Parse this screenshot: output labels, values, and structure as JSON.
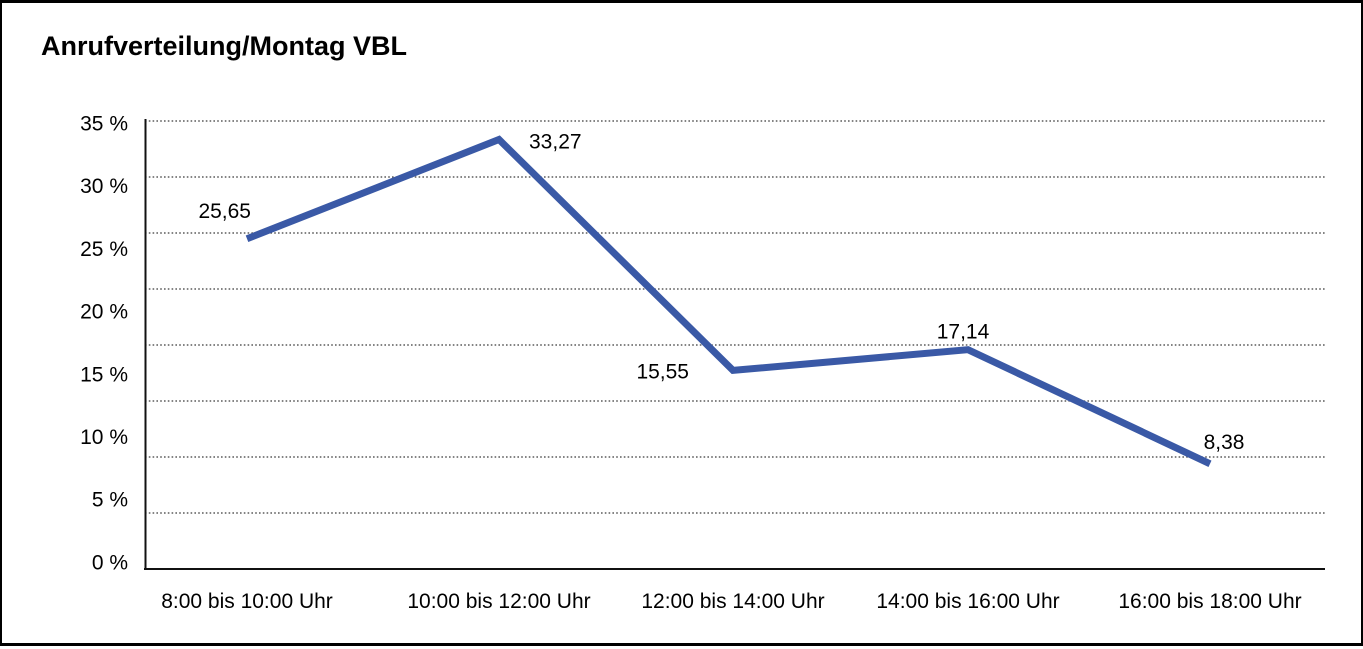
{
  "chart_data": {
    "type": "line",
    "title": "Anrufverteilung/Montag VBL",
    "categories": [
      "8:00 bis 10:00 Uhr",
      "10:00 bis 12:00 Uhr",
      "12:00 bis 14:00 Uhr",
      "14:00 bis 16:00 Uhr",
      "16:00 bis 18:00 Uhr"
    ],
    "values": [
      25.65,
      33.27,
      15.55,
      17.14,
      8.38
    ],
    "point_labels": [
      "25,65",
      "33,27",
      "15,55",
      "17,14",
      "8,38"
    ],
    "y_tick_values": [
      35,
      30,
      25,
      20,
      15,
      10,
      5,
      0
    ],
    "y_tick_labels": [
      "35 %",
      "30 %",
      "25 %",
      "20 %",
      "15 %",
      "10 %",
      "5 %",
      "0 %"
    ],
    "ylim": [
      0,
      35
    ],
    "xlabel": "",
    "ylabel": "",
    "legend": "none",
    "grid": "horizontal-dotted",
    "line_color": "#3A59A6",
    "axis_color": "#111111",
    "gridline_color": "#3b3b3b",
    "text_color": "#000000"
  }
}
